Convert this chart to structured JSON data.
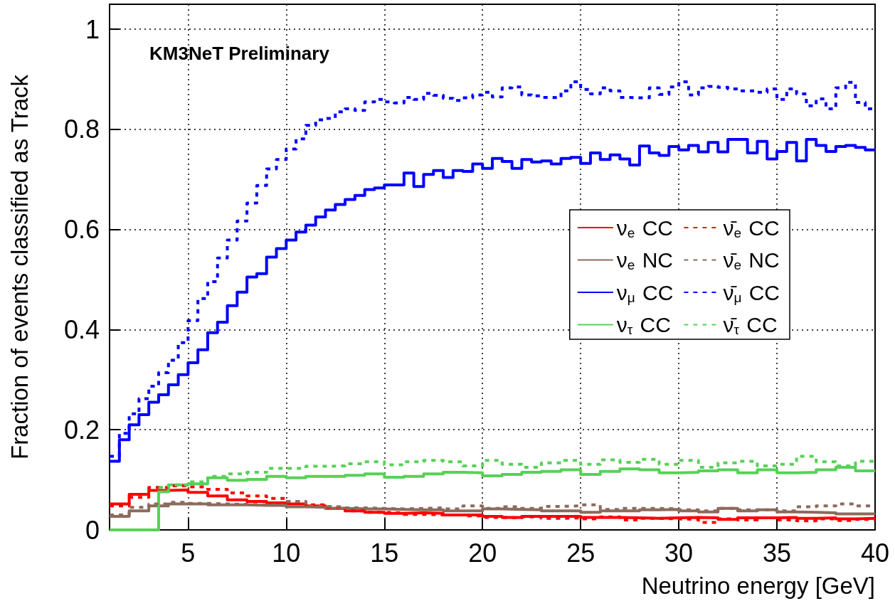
{
  "chart_data": {
    "type": "step",
    "xlabel": "Neutrino energy [GeV]",
    "ylabel": "Fraction of events classified as Track",
    "annotations": [
      "KM3NeT Preliminary"
    ],
    "xlim": [
      1,
      40
    ],
    "xticks": [
      5,
      10,
      15,
      20,
      25,
      30,
      35,
      40
    ],
    "ylim": [
      0,
      1.05
    ],
    "yticks": [
      0,
      0.2,
      0.4,
      0.6,
      0.8,
      1
    ],
    "grid": true,
    "legend": "right",
    "marker": "none",
    "x": [
      1,
      1.5,
      2,
      2.5,
      3,
      3.5,
      4,
      4.5,
      5,
      5.5,
      6,
      6.5,
      7,
      7.5,
      8,
      8.5,
      9,
      9.5,
      10,
      10.5,
      11,
      11.5,
      12,
      12.5,
      13,
      13.5,
      14,
      14.5,
      15,
      15.5,
      16,
      16.5,
      17,
      17.5,
      18,
      18.5,
      19,
      19.5,
      20,
      20.5,
      21,
      21.5,
      22,
      22.5,
      23,
      23.5,
      24,
      24.5,
      25,
      25.5,
      26,
      26.5,
      27,
      27.5,
      28,
      28.5,
      29,
      29.5,
      30,
      30.5,
      31,
      31.5,
      32,
      32.5,
      33,
      33.5,
      34,
      34.5,
      35,
      35.5,
      36,
      36.5,
      37,
      37.5,
      38,
      38.5,
      39,
      39.5,
      40
    ],
    "series": [
      {
        "name": "ν$_{e}$ CC",
        "color": "#ff0000",
        "line_style": "solid",
        "x": [
          1,
          2,
          3,
          4,
          5,
          6,
          7,
          8,
          9,
          10,
          11,
          12,
          13,
          14,
          15,
          16,
          17,
          18,
          19,
          20,
          21,
          22,
          23,
          24,
          25,
          26,
          27,
          28,
          29,
          30,
          31,
          32,
          33,
          34,
          35,
          36,
          37,
          38,
          39,
          40
        ],
        "values": [
          0.052,
          0.071,
          0.079,
          0.08,
          0.075,
          0.068,
          0.06,
          0.057,
          0.054,
          0.052,
          0.048,
          0.043,
          0.038,
          0.035,
          0.033,
          0.034,
          0.033,
          0.03,
          0.03,
          0.027,
          0.025,
          0.027,
          0.027,
          0.027,
          0.025,
          0.025,
          0.024,
          0.023,
          0.024,
          0.025,
          0.024,
          0.021,
          0.024,
          0.024,
          0.025,
          0.023,
          0.024,
          0.022,
          0.023,
          0.023
        ]
      },
      {
        "name": "ν$_{e}$ NC",
        "color": "#8c6b5c",
        "line_style": "solid",
        "x": [
          1,
          2,
          3,
          4,
          5,
          6,
          7,
          8,
          9,
          10,
          11,
          12,
          13,
          14,
          15,
          16,
          17,
          18,
          19,
          20,
          21,
          22,
          23,
          24,
          25,
          26,
          27,
          28,
          29,
          30,
          31,
          32,
          33,
          34,
          35,
          36,
          37,
          38,
          39,
          40
        ],
        "values": [
          0.027,
          0.038,
          0.048,
          0.052,
          0.052,
          0.05,
          0.05,
          0.049,
          0.049,
          0.046,
          0.045,
          0.043,
          0.042,
          0.042,
          0.041,
          0.04,
          0.04,
          0.038,
          0.038,
          0.042,
          0.041,
          0.04,
          0.038,
          0.038,
          0.035,
          0.038,
          0.038,
          0.04,
          0.041,
          0.038,
          0.036,
          0.043,
          0.038,
          0.04,
          0.036,
          0.035,
          0.034,
          0.032,
          0.032,
          0.032
        ]
      },
      {
        "name": "ν$_{μ}$ CC",
        "color": "#0000ff",
        "line_style": "solid",
        "values": [
          0.137,
          0.18,
          0.21,
          0.23,
          0.255,
          0.27,
          0.29,
          0.31,
          0.334,
          0.36,
          0.394,
          0.415,
          0.448,
          0.475,
          0.505,
          0.512,
          0.545,
          0.562,
          0.579,
          0.595,
          0.609,
          0.625,
          0.639,
          0.65,
          0.66,
          0.668,
          0.68,
          0.683,
          0.689,
          0.689,
          0.713,
          0.686,
          0.71,
          0.718,
          0.704,
          0.718,
          0.716,
          0.731,
          0.722,
          0.742,
          0.736,
          0.722,
          0.74,
          0.735,
          0.737,
          0.731,
          0.742,
          0.744,
          0.732,
          0.753,
          0.74,
          0.749,
          0.741,
          0.729,
          0.767,
          0.753,
          0.748,
          0.766,
          0.759,
          0.768,
          0.755,
          0.774,
          0.755,
          0.78,
          0.78,
          0.753,
          0.776,
          0.741,
          0.756,
          0.774,
          0.737,
          0.78,
          0.768,
          0.756,
          0.766,
          0.768,
          0.764,
          0.759,
          0.759
        ]
      },
      {
        "name": "ν$_{τ}$ CC",
        "color": "#57d157",
        "line_style": "solid",
        "x": [
          1,
          3.5,
          4,
          5,
          6,
          7,
          8,
          9,
          10,
          11,
          12,
          13,
          14,
          15,
          16,
          17,
          18,
          19,
          20,
          21,
          22,
          23,
          24,
          25,
          26,
          27,
          28,
          29,
          30,
          31,
          32,
          33,
          34,
          35,
          36,
          37,
          38,
          39,
          40
        ],
        "values": [
          0,
          0.076,
          0.09,
          0.092,
          0.104,
          0.099,
          0.101,
          0.107,
          0.104,
          0.107,
          0.107,
          0.109,
          0.112,
          0.105,
          0.107,
          0.112,
          0.115,
          0.114,
          0.108,
          0.111,
          0.115,
          0.117,
          0.12,
          0.111,
          0.117,
          0.122,
          0.12,
          0.114,
          0.115,
          0.118,
          0.12,
          0.114,
          0.12,
          0.114,
          0.115,
          0.12,
          0.125,
          0.118,
          0.118
        ]
      },
      {
        "name": "ν̄$_{e}$ CC",
        "color": "#ff0000",
        "line_style": "dotted",
        "x": [
          1,
          2,
          3,
          4,
          5,
          6,
          7,
          8,
          9,
          10,
          11,
          12,
          13,
          14,
          15,
          16,
          17,
          18,
          19,
          20,
          21,
          22,
          23,
          24,
          25,
          26,
          27,
          28,
          29,
          30,
          31,
          32,
          33,
          34,
          35,
          36,
          37,
          38,
          39,
          40
        ],
        "values": [
          0.048,
          0.065,
          0.085,
          0.088,
          0.086,
          0.081,
          0.074,
          0.068,
          0.063,
          0.056,
          0.05,
          0.045,
          0.038,
          0.035,
          0.034,
          0.031,
          0.03,
          0.03,
          0.028,
          0.025,
          0.024,
          0.026,
          0.023,
          0.024,
          0.022,
          0.026,
          0.02,
          0.023,
          0.022,
          0.021,
          0.015,
          0.022,
          0.02,
          0.024,
          0.02,
          0.018,
          0.022,
          0.019,
          0.021,
          0.021
        ]
      },
      {
        "name": "ν̄$_{e}$ NC",
        "color": "#8c6b5c",
        "line_style": "dotted",
        "x": [
          1,
          2,
          3,
          4,
          5,
          6,
          7,
          8,
          9,
          10,
          11,
          12,
          13,
          14,
          15,
          16,
          17,
          18,
          19,
          20,
          21,
          22,
          23,
          24,
          25,
          26,
          27,
          28,
          29,
          30,
          31,
          32,
          33,
          34,
          35,
          36,
          37,
          38,
          39,
          40
        ],
        "values": [
          0.03,
          0.045,
          0.052,
          0.055,
          0.053,
          0.052,
          0.051,
          0.05,
          0.049,
          0.057,
          0.047,
          0.046,
          0.044,
          0.043,
          0.042,
          0.043,
          0.044,
          0.042,
          0.048,
          0.043,
          0.046,
          0.043,
          0.047,
          0.048,
          0.05,
          0.041,
          0.043,
          0.043,
          0.042,
          0.04,
          0.038,
          0.043,
          0.04,
          0.04,
          0.038,
          0.046,
          0.048,
          0.052,
          0.048,
          0.048
        ]
      },
      {
        "name": "ν̄$_{μ}$ CC",
        "color": "#0000ff",
        "line_style": "dotted",
        "values": [
          0.147,
          0.193,
          0.232,
          0.262,
          0.287,
          0.314,
          0.339,
          0.374,
          0.418,
          0.462,
          0.496,
          0.543,
          0.579,
          0.617,
          0.653,
          0.688,
          0.721,
          0.74,
          0.761,
          0.781,
          0.808,
          0.819,
          0.822,
          0.835,
          0.841,
          0.838,
          0.855,
          0.86,
          0.855,
          0.853,
          0.864,
          0.86,
          0.872,
          0.868,
          0.862,
          0.858,
          0.863,
          0.869,
          0.874,
          0.865,
          0.883,
          0.885,
          0.869,
          0.867,
          0.864,
          0.863,
          0.877,
          0.895,
          0.88,
          0.871,
          0.883,
          0.877,
          0.864,
          0.863,
          0.863,
          0.883,
          0.87,
          0.885,
          0.895,
          0.869,
          0.883,
          0.886,
          0.884,
          0.881,
          0.877,
          0.877,
          0.874,
          0.881,
          0.86,
          0.881,
          0.871,
          0.847,
          0.861,
          0.841,
          0.883,
          0.894,
          0.854,
          0.841,
          0.841
        ]
      },
      {
        "name": "ν̄$_{τ}$ CC",
        "color": "#57d157",
        "line_style": "dotted",
        "x": [
          3.5,
          4,
          5,
          6,
          7,
          8,
          9,
          10,
          11,
          12,
          13,
          14,
          15,
          16,
          17,
          18,
          19,
          20,
          21,
          22,
          23,
          24,
          25,
          26,
          27,
          28,
          29,
          30,
          31,
          32,
          33,
          34,
          35,
          36,
          37,
          38,
          39,
          40
        ],
        "values": [
          0.085,
          0.09,
          0.096,
          0.107,
          0.112,
          0.115,
          0.123,
          0.123,
          0.127,
          0.128,
          0.132,
          0.136,
          0.13,
          0.136,
          0.139,
          0.136,
          0.128,
          0.139,
          0.131,
          0.125,
          0.134,
          0.139,
          0.131,
          0.14,
          0.135,
          0.141,
          0.131,
          0.139,
          0.125,
          0.134,
          0.137,
          0.128,
          0.131,
          0.147,
          0.136,
          0.128,
          0.137,
          0.137
        ]
      }
    ]
  }
}
